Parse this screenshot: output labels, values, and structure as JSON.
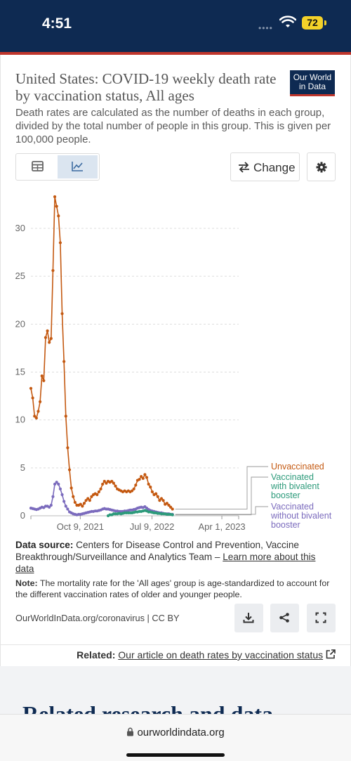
{
  "status": {
    "time": "4:51",
    "battery": "72"
  },
  "logo": {
    "line1": "Our World",
    "line2": "in Data"
  },
  "title": "United States: COVID-19 weekly death rate by vaccination status, All ages",
  "subtitle": "Death rates are calculated as the number of deaths in each group, divided by the total number of people in this group. This is given per 100,000 people.",
  "controls": {
    "change_label": "Change"
  },
  "colors": {
    "unvaccinated": "#c45911",
    "bivalent": "#2c9a7a",
    "without_bivalent": "#7b6bbd"
  },
  "chart_data": {
    "type": "line",
    "title": "United States: COVID-19 weekly death rate by vaccination status, All ages",
    "ylim": [
      0,
      30
    ],
    "yticks": [
      0,
      5,
      10,
      15,
      20,
      25,
      30
    ],
    "xticks": [
      "Oct 9, 2021",
      "Jul 9, 2022",
      "Apr 1, 2023"
    ],
    "grid": true,
    "legend_placement": "right",
    "series": [
      {
        "name": "Unvaccinated",
        "color": "#c45911",
        "points": [
          [
            "2021-04-04",
            13.3
          ],
          [
            "2021-04-11",
            12.3
          ],
          [
            "2021-04-18",
            10.4
          ],
          [
            "2021-04-25",
            10.2
          ],
          [
            "2021-05-02",
            10.9
          ],
          [
            "2021-05-09",
            11.9
          ],
          [
            "2021-05-16",
            14.6
          ],
          [
            "2021-05-23",
            14.1
          ],
          [
            "2021-05-30",
            18.6
          ],
          [
            "2021-06-06",
            19.3
          ],
          [
            "2021-06-13",
            18.1
          ],
          [
            "2021-06-20",
            18.5
          ],
          [
            "2021-06-27",
            25.6
          ],
          [
            "2021-07-04",
            33.3
          ],
          [
            "2021-07-11",
            32.3
          ],
          [
            "2021-07-18",
            31.3
          ],
          [
            "2021-07-25",
            28.5
          ],
          [
            "2021-08-01",
            21.1
          ],
          [
            "2021-08-08",
            16.1
          ],
          [
            "2021-08-15",
            10.4
          ],
          [
            "2021-08-22",
            7.1
          ],
          [
            "2021-08-29",
            4.8
          ],
          [
            "2021-09-05",
            2.9
          ],
          [
            "2021-09-12",
            2.0
          ],
          [
            "2021-09-19",
            1.4
          ],
          [
            "2021-09-26",
            1.1
          ],
          [
            "2021-10-03",
            1.1
          ],
          [
            "2021-10-10",
            1.2
          ],
          [
            "2021-10-17",
            1.0
          ],
          [
            "2021-10-24",
            1.3
          ],
          [
            "2021-10-31",
            1.6
          ],
          [
            "2021-11-07",
            1.8
          ],
          [
            "2021-11-14",
            1.6
          ],
          [
            "2021-11-21",
            2.0
          ],
          [
            "2021-11-28",
            2.2
          ],
          [
            "2021-12-05",
            2.3
          ],
          [
            "2021-12-12",
            2.2
          ],
          [
            "2021-12-19",
            2.5
          ],
          [
            "2021-12-26",
            2.8
          ],
          [
            "2022-01-02",
            3.3
          ],
          [
            "2022-01-09",
            3.6
          ],
          [
            "2022-01-16",
            3.4
          ],
          [
            "2022-01-23",
            3.6
          ],
          [
            "2022-01-30",
            3.5
          ],
          [
            "2022-02-06",
            3.6
          ],
          [
            "2022-02-13",
            3.4
          ],
          [
            "2022-02-20",
            3.1
          ],
          [
            "2022-02-27",
            2.8
          ],
          [
            "2022-03-06",
            2.7
          ],
          [
            "2022-03-13",
            2.6
          ],
          [
            "2022-03-20",
            2.5
          ],
          [
            "2022-03-27",
            2.6
          ],
          [
            "2022-04-03",
            2.5
          ],
          [
            "2022-04-10",
            2.6
          ],
          [
            "2022-04-17",
            2.5
          ],
          [
            "2022-04-24",
            2.6
          ],
          [
            "2022-05-01",
            2.8
          ],
          [
            "2022-05-08",
            3.2
          ],
          [
            "2022-05-15",
            3.7
          ],
          [
            "2022-05-22",
            3.8
          ],
          [
            "2022-05-29",
            4.1
          ],
          [
            "2022-06-05",
            3.9
          ],
          [
            "2022-06-12",
            4.3
          ],
          [
            "2022-06-19",
            4.0
          ],
          [
            "2022-06-26",
            3.3
          ],
          [
            "2022-07-03",
            3.0
          ],
          [
            "2022-07-10",
            2.5
          ],
          [
            "2022-07-17",
            2.2
          ],
          [
            "2022-07-24",
            2.3
          ],
          [
            "2022-07-31",
            2.0
          ],
          [
            "2022-08-07",
            1.6
          ],
          [
            "2022-08-14",
            1.8
          ],
          [
            "2022-08-21",
            1.6
          ],
          [
            "2022-08-28",
            1.2
          ],
          [
            "2022-09-04",
            1.3
          ],
          [
            "2022-09-11",
            1.1
          ],
          [
            "2022-09-18",
            0.9
          ],
          [
            "2022-09-25",
            0.7
          ]
        ]
      },
      {
        "name": "Vaccinated with bivalent booster",
        "color": "#2c9a7a",
        "points": [
          [
            "2022-01-23",
            0.0
          ],
          [
            "2022-01-30",
            0.1
          ],
          [
            "2022-02-06",
            0.1
          ],
          [
            "2022-02-13",
            0.2
          ],
          [
            "2022-02-20",
            0.2
          ],
          [
            "2022-02-27",
            0.2
          ],
          [
            "2022-03-06",
            0.25
          ],
          [
            "2022-03-13",
            0.2
          ],
          [
            "2022-03-20",
            0.25
          ],
          [
            "2022-03-27",
            0.3
          ],
          [
            "2022-04-03",
            0.3
          ],
          [
            "2022-04-10",
            0.3
          ],
          [
            "2022-04-17",
            0.3
          ],
          [
            "2022-04-24",
            0.3
          ],
          [
            "2022-05-01",
            0.35
          ],
          [
            "2022-05-08",
            0.4
          ],
          [
            "2022-05-15",
            0.4
          ],
          [
            "2022-05-22",
            0.45
          ],
          [
            "2022-05-29",
            0.45
          ],
          [
            "2022-06-05",
            0.5
          ],
          [
            "2022-06-12",
            0.55
          ],
          [
            "2022-06-19",
            0.5
          ],
          [
            "2022-06-26",
            0.4
          ],
          [
            "2022-07-03",
            0.4
          ],
          [
            "2022-07-10",
            0.35
          ],
          [
            "2022-07-17",
            0.3
          ],
          [
            "2022-07-24",
            0.3
          ],
          [
            "2022-07-31",
            0.25
          ],
          [
            "2022-08-07",
            0.25
          ],
          [
            "2022-08-14",
            0.2
          ],
          [
            "2022-08-21",
            0.2
          ],
          [
            "2022-08-28",
            0.2
          ],
          [
            "2022-09-04",
            0.15
          ],
          [
            "2022-09-11",
            0.15
          ],
          [
            "2022-09-18",
            0.15
          ],
          [
            "2022-09-25",
            0.1
          ]
        ]
      },
      {
        "name": "Vaccinated without bivalent booster",
        "color": "#7b6bbd",
        "points": [
          [
            "2021-04-04",
            0.8
          ],
          [
            "2021-04-11",
            0.75
          ],
          [
            "2021-04-18",
            0.7
          ],
          [
            "2021-04-25",
            0.65
          ],
          [
            "2021-05-02",
            0.7
          ],
          [
            "2021-05-09",
            0.8
          ],
          [
            "2021-05-16",
            0.9
          ],
          [
            "2021-05-23",
            0.85
          ],
          [
            "2021-05-30",
            1.0
          ],
          [
            "2021-06-06",
            1.0
          ],
          [
            "2021-06-13",
            0.9
          ],
          [
            "2021-06-20",
            1.1
          ],
          [
            "2021-06-27",
            2.0
          ],
          [
            "2021-07-04",
            3.3
          ],
          [
            "2021-07-11",
            3.5
          ],
          [
            "2021-07-18",
            3.3
          ],
          [
            "2021-07-25",
            2.8
          ],
          [
            "2021-08-01",
            2.2
          ],
          [
            "2021-08-08",
            1.5
          ],
          [
            "2021-08-15",
            1.0
          ],
          [
            "2021-08-22",
            0.7
          ],
          [
            "2021-08-29",
            0.4
          ],
          [
            "2021-09-05",
            0.3
          ],
          [
            "2021-09-12",
            0.2
          ],
          [
            "2021-09-19",
            0.15
          ],
          [
            "2021-09-26",
            0.1
          ],
          [
            "2021-10-03",
            0.15
          ],
          [
            "2021-10-10",
            0.15
          ],
          [
            "2021-10-17",
            0.2
          ],
          [
            "2021-10-24",
            0.25
          ],
          [
            "2021-10-31",
            0.3
          ],
          [
            "2021-11-07",
            0.35
          ],
          [
            "2021-11-14",
            0.4
          ],
          [
            "2021-11-21",
            0.45
          ],
          [
            "2021-11-28",
            0.45
          ],
          [
            "2021-12-05",
            0.5
          ],
          [
            "2021-12-12",
            0.5
          ],
          [
            "2021-12-19",
            0.55
          ],
          [
            "2021-12-26",
            0.6
          ],
          [
            "2022-01-02",
            0.7
          ],
          [
            "2022-01-09",
            0.75
          ],
          [
            "2022-01-16",
            0.7
          ],
          [
            "2022-01-23",
            0.7
          ],
          [
            "2022-01-30",
            0.65
          ],
          [
            "2022-02-06",
            0.6
          ],
          [
            "2022-02-13",
            0.55
          ],
          [
            "2022-02-20",
            0.5
          ],
          [
            "2022-02-27",
            0.5
          ],
          [
            "2022-03-06",
            0.45
          ],
          [
            "2022-03-13",
            0.45
          ],
          [
            "2022-03-20",
            0.45
          ],
          [
            "2022-03-27",
            0.5
          ],
          [
            "2022-04-03",
            0.5
          ],
          [
            "2022-04-10",
            0.55
          ],
          [
            "2022-04-17",
            0.6
          ],
          [
            "2022-04-24",
            0.6
          ],
          [
            "2022-05-01",
            0.65
          ],
          [
            "2022-05-08",
            0.7
          ],
          [
            "2022-05-15",
            0.8
          ],
          [
            "2022-05-22",
            0.85
          ],
          [
            "2022-05-29",
            0.9
          ],
          [
            "2022-06-05",
            0.85
          ],
          [
            "2022-06-12",
            0.95
          ],
          [
            "2022-06-19",
            0.8
          ],
          [
            "2022-06-26",
            0.65
          ],
          [
            "2022-07-03",
            0.55
          ],
          [
            "2022-07-10",
            0.5
          ],
          [
            "2022-07-17",
            0.45
          ],
          [
            "2022-07-24",
            0.4
          ],
          [
            "2022-07-31",
            0.35
          ],
          [
            "2022-08-07",
            0.3
          ],
          [
            "2022-08-14",
            0.3
          ],
          [
            "2022-08-21",
            0.25
          ],
          [
            "2022-08-28",
            0.2
          ],
          [
            "2022-09-04",
            0.2
          ],
          [
            "2022-09-11",
            0.2
          ],
          [
            "2022-09-18",
            0.15
          ],
          [
            "2022-09-25",
            0.15
          ]
        ]
      }
    ],
    "legend": [
      {
        "lines": [
          "Unvaccinated"
        ],
        "color": "#c45911"
      },
      {
        "lines": [
          "Vaccinated",
          "with bivalent",
          "booster"
        ],
        "color": "#2c9a7a"
      },
      {
        "lines": [
          "Vaccinated",
          "without bivalent",
          "booster"
        ],
        "color": "#7b6bbd"
      }
    ]
  },
  "source": {
    "label": "Data source:",
    "text": "Centers for Disease Control and Prevention, Vaccine Breakthrough/Surveillance and Analytics Team –",
    "link": "Learn more about this data"
  },
  "note": {
    "label": "Note:",
    "text": "The mortality rate for the 'All ages' group is age-standardized to account for the different vaccination rates of older and younger people."
  },
  "footer": {
    "url": "OurWorldInData.org/coronavirus | CC BY"
  },
  "related": {
    "label": "Related:",
    "link": "Our article on death rates by vaccination status"
  },
  "related_heading": "Related research and data",
  "browser": {
    "domain": "ourworldindata.org"
  }
}
